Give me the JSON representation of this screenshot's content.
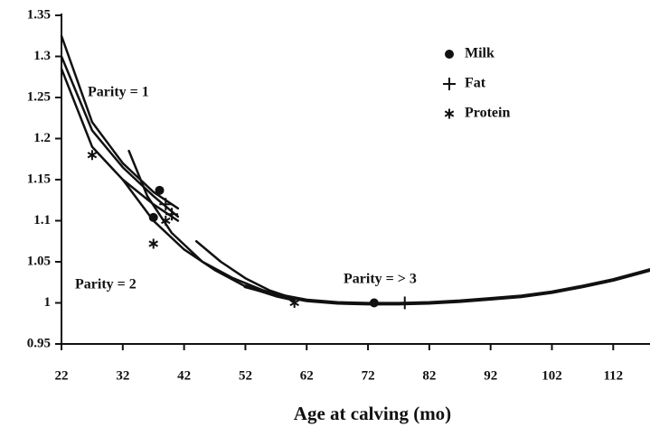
{
  "chart_data": {
    "type": "scatter",
    "xlabel": "Age at calving (mo)",
    "xlim": [
      22,
      118
    ],
    "ylim": [
      0.95,
      1.35
    ],
    "xticks": [
      22,
      32,
      42,
      52,
      62,
      72,
      82,
      92,
      102,
      112
    ],
    "yticks": [
      0.95,
      1,
      1.05,
      1.1,
      1.15,
      1.2,
      1.25,
      1.3,
      1.35
    ],
    "series": [
      {
        "name": "Milk",
        "marker": "circle",
        "color": "#111111",
        "x": [
          38,
          37,
          73
        ],
        "values": [
          1.137,
          1.104,
          1.0
        ]
      },
      {
        "name": "Fat",
        "marker": "plus",
        "color": "#111111",
        "x": [
          39,
          40,
          78
        ],
        "values": [
          1.12,
          1.108,
          1.0
        ]
      },
      {
        "name": "Protein",
        "marker": "asterisk",
        "color": "#111111",
        "x": [
          27,
          37,
          60,
          39
        ],
        "values": [
          1.18,
          1.072,
          1.0,
          1.1
        ]
      }
    ],
    "curves": [
      {
        "x": [
          22,
          27,
          32,
          37,
          41
        ],
        "values": [
          1.325,
          1.22,
          1.17,
          1.135,
          1.115
        ]
      },
      {
        "x": [
          22,
          27,
          32,
          37,
          41
        ],
        "values": [
          1.3,
          1.21,
          1.165,
          1.13,
          1.105
        ]
      },
      {
        "x": [
          22,
          27,
          32,
          37,
          41
        ],
        "values": [
          1.285,
          1.19,
          1.15,
          1.12,
          1.1
        ]
      },
      {
        "x": [
          32,
          37,
          42,
          47,
          52,
          57,
          60
        ],
        "values": [
          1.15,
          1.1,
          1.065,
          1.04,
          1.02,
          1.008,
          1.003
        ]
      },
      {
        "x": [
          33,
          36,
          40,
          45,
          50,
          55,
          59
        ],
        "values": [
          1.185,
          1.13,
          1.085,
          1.05,
          1.03,
          1.015,
          1.005
        ]
      },
      {
        "x": [
          44,
          48,
          52,
          56,
          60
        ],
        "values": [
          1.075,
          1.05,
          1.03,
          1.015,
          1.005
        ]
      },
      {
        "x": [
          52,
          57,
          62,
          67,
          72,
          77,
          82,
          87,
          92,
          97,
          102,
          107,
          112,
          118
        ],
        "values": [
          1.02,
          1.01,
          1.003,
          1.0,
          0.999,
          0.999,
          1.0,
          1.002,
          1.005,
          1.008,
          1.013,
          1.02,
          1.028,
          1.04
        ]
      }
    ],
    "annotations": [
      "Parity = 1",
      "Parity = 2",
      "Parity = > 3"
    ],
    "curve_color": "#111111"
  }
}
